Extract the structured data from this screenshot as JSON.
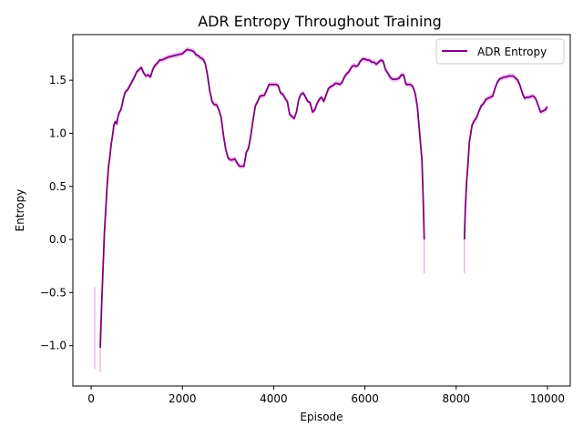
{
  "chart_data": {
    "type": "line",
    "title": "ADR Entropy Throughout Training",
    "xlabel": "Episode",
    "ylabel": "Entropy",
    "xlim": [
      -400,
      10500
    ],
    "ylim": [
      -1.38,
      1.93
    ],
    "xticks": [
      0,
      2000,
      4000,
      6000,
      8000,
      10000
    ],
    "xtick_labels": [
      "0",
      "2000",
      "4000",
      "6000",
      "8000",
      "10000"
    ],
    "yticks": [
      -1.0,
      -0.5,
      0.0,
      0.5,
      1.0,
      1.5
    ],
    "ytick_labels": [
      "−1.0",
      "−0.5",
      "0.0",
      "0.5",
      "1.0",
      "1.5"
    ],
    "grid": false,
    "legend_position": "top-right",
    "colors": {
      "line": "#800080",
      "band": "#e9a4e9"
    },
    "series": [
      {
        "name": "ADR Entropy",
        "segments": [
          {
            "x": [
              200,
              230,
              260,
              290,
              320,
              350,
              380,
              410,
              440,
              470,
              500,
              530,
              560,
              590,
              620,
              650,
              680,
              710,
              740,
              770,
              800,
              850,
              900,
              950,
              1000,
              1050,
              1100,
              1150,
              1200,
              1250,
              1300,
              1350,
              1400,
              1450,
              1500,
              1550,
              1600,
              1650,
              1700,
              1800,
              1900,
              2000,
              2100,
              2200,
              2250,
              2300,
              2350,
              2400,
              2450,
              2500,
              2550,
              2600,
              2650,
              2700,
              2750,
              2800,
              2850,
              2900,
              2950,
              3000,
              3050,
              3100,
              3150,
              3200,
              3250,
              3300,
              3350,
              3400,
              3450,
              3500,
              3550,
              3600,
              3650,
              3700,
              3800,
              3900,
              4000,
              4050,
              4100,
              4150,
              4200,
              4250,
              4300,
              4350,
              4400,
              4450,
              4500,
              4550,
              4600,
              4650,
              4700,
              4750,
              4800,
              4850,
              4900,
              4950,
              5000,
              5050,
              5100,
              5150,
              5200,
              5250,
              5300,
              5350,
              5400,
              5450,
              5500,
              5550,
              5600,
              5650,
              5700,
              5750,
              5800,
              5850,
              5900,
              5950,
              6000,
              6050,
              6100,
              6150,
              6200,
              6250,
              6300,
              6350,
              6400,
              6450,
              6500,
              6550,
              6600,
              6650,
              6700,
              6750,
              6800,
              6850,
              6900,
              6950,
              7000,
              7050,
              7100,
              7150,
              7200,
              7250,
              7280,
              7300
            ],
            "y": [
              -1.02,
              -0.62,
              -0.28,
              0.05,
              0.28,
              0.5,
              0.68,
              0.78,
              0.9,
              0.98,
              1.08,
              1.11,
              1.09,
              1.16,
              1.2,
              1.22,
              1.27,
              1.33,
              1.38,
              1.4,
              1.41,
              1.45,
              1.49,
              1.53,
              1.58,
              1.6,
              1.62,
              1.57,
              1.54,
              1.55,
              1.53,
              1.6,
              1.64,
              1.66,
              1.69,
              1.69,
              1.7,
              1.71,
              1.72,
              1.73,
              1.74,
              1.75,
              1.79,
              1.78,
              1.77,
              1.74,
              1.73,
              1.71,
              1.7,
              1.66,
              1.55,
              1.4,
              1.3,
              1.27,
              1.27,
              1.22,
              1.15,
              0.98,
              0.85,
              0.77,
              0.75,
              0.75,
              0.76,
              0.72,
              0.69,
              0.69,
              0.69,
              0.82,
              0.86,
              0.98,
              1.13,
              1.26,
              1.3,
              1.35,
              1.36,
              1.46,
              1.46,
              1.46,
              1.45,
              1.38,
              1.37,
              1.33,
              1.3,
              1.18,
              1.16,
              1.14,
              1.2,
              1.32,
              1.37,
              1.38,
              1.34,
              1.3,
              1.29,
              1.2,
              1.22,
              1.28,
              1.32,
              1.34,
              1.3,
              1.36,
              1.42,
              1.44,
              1.45,
              1.47,
              1.47,
              1.46,
              1.48,
              1.53,
              1.56,
              1.58,
              1.62,
              1.64,
              1.63,
              1.64,
              1.68,
              1.7,
              1.7,
              1.69,
              1.69,
              1.67,
              1.67,
              1.65,
              1.67,
              1.69,
              1.68,
              1.6,
              1.57,
              1.53,
              1.51,
              1.51,
              1.51,
              1.52,
              1.55,
              1.55,
              1.46,
              1.46,
              1.46,
              1.44,
              1.38,
              1.25,
              1.0,
              0.75,
              0.35,
              0.0
            ]
          },
          {
            "x": [
              8180,
              8200,
              8230,
              8260,
              8290,
              8320,
              8350,
              8400,
              8450,
              8500,
              8550,
              8600,
              8650,
              8700,
              8750,
              8800,
              8850,
              8900,
              8950,
              9000,
              9050,
              9100,
              9150,
              9200,
              9250,
              9300,
              9350,
              9400,
              9450,
              9500,
              9550,
              9600,
              9650,
              9700,
              9750,
              9800,
              9850,
              9900,
              9950,
              10000
            ],
            "y": [
              0.0,
              0.28,
              0.55,
              0.72,
              0.92,
              1.0,
              1.08,
              1.12,
              1.15,
              1.21,
              1.26,
              1.28,
              1.32,
              1.33,
              1.34,
              1.35,
              1.42,
              1.48,
              1.51,
              1.52,
              1.53,
              1.53,
              1.54,
              1.54,
              1.54,
              1.52,
              1.5,
              1.45,
              1.38,
              1.33,
              1.34,
              1.34,
              1.35,
              1.35,
              1.32,
              1.26,
              1.2,
              1.21,
              1.22,
              1.25
            ]
          }
        ],
        "band_spikes": [
          {
            "x": 80,
            "low": -1.22,
            "high": -0.45
          },
          {
            "x": 200,
            "low": -1.25,
            "high": -0.85
          },
          {
            "x": 7300,
            "low": -0.32,
            "high": 0.0
          },
          {
            "x": 8180,
            "low": -0.32,
            "high": 0.0
          }
        ],
        "band_width": 0.025
      }
    ]
  }
}
